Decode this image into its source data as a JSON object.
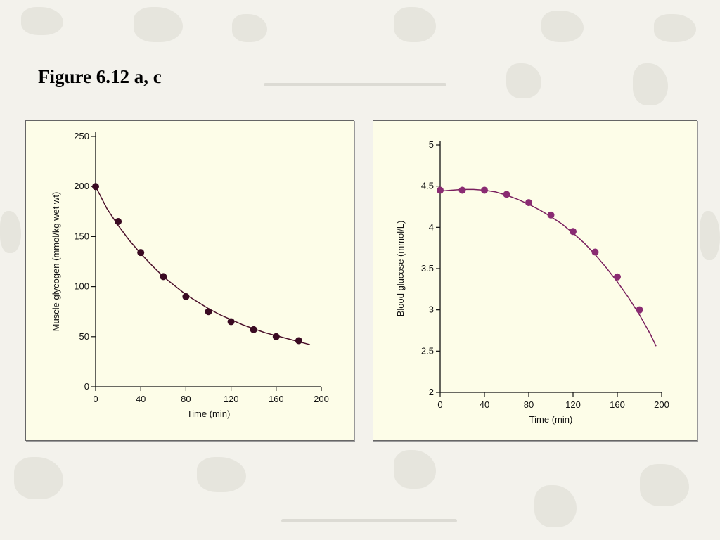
{
  "slide": {
    "title": "Figure 6.12 a, c"
  },
  "colors": {
    "background": "#f3f2ec",
    "panel": "#fdfde8",
    "curve_a": "#4a0f2a",
    "curve_c": "#7a1f5e",
    "points_a": "#3a0a22",
    "points_c": "#8a2b72"
  },
  "chart_data": [
    {
      "type": "scatter",
      "xlabel": "Time (min)",
      "ylabel": "Muscle glycogen (mmol/kg wet wt)",
      "xlim": [
        0,
        200
      ],
      "ylim": [
        0,
        250
      ],
      "xticks": [
        0,
        40,
        80,
        120,
        160,
        200
      ],
      "yticks": [
        0,
        50,
        100,
        150,
        200,
        250
      ],
      "grid": false,
      "points": {
        "x": [
          0,
          20,
          40,
          60,
          80,
          100,
          120,
          140,
          160,
          180
        ],
        "y": [
          200,
          165,
          134,
          110,
          90,
          75,
          65,
          57,
          50,
          46
        ]
      },
      "fit_curve": {
        "x": [
          0,
          10,
          20,
          30,
          40,
          50,
          60,
          70,
          80,
          90,
          100,
          110,
          120,
          130,
          140,
          150,
          160,
          170,
          180,
          190
        ],
        "y": [
          200,
          178,
          161,
          146,
          133,
          121,
          110,
          101,
          92,
          85,
          78,
          72,
          67,
          62,
          58,
          54,
          51,
          48,
          45,
          42
        ]
      }
    },
    {
      "type": "scatter",
      "xlabel": "Time (min)",
      "ylabel": "Blood glucose (mmol/L)",
      "xlim": [
        0,
        200
      ],
      "ylim": [
        2,
        5
      ],
      "xticks": [
        0,
        40,
        80,
        120,
        160,
        200
      ],
      "yticks": [
        2,
        2.5,
        3,
        3.5,
        4,
        4.5,
        5
      ],
      "grid": false,
      "points": {
        "x": [
          0,
          20,
          40,
          60,
          80,
          100,
          120,
          140,
          160,
          180
        ],
        "y": [
          4.45,
          4.45,
          4.45,
          4.4,
          4.3,
          4.15,
          3.95,
          3.7,
          3.4,
          3.0
        ]
      },
      "fit_curve": {
        "x": [
          0,
          10,
          20,
          30,
          40,
          50,
          60,
          70,
          80,
          90,
          100,
          110,
          120,
          130,
          140,
          150,
          160,
          170,
          180,
          190,
          195
        ],
        "y": [
          4.44,
          4.45,
          4.46,
          4.46,
          4.45,
          4.43,
          4.39,
          4.34,
          4.28,
          4.21,
          4.13,
          4.04,
          3.93,
          3.81,
          3.67,
          3.51,
          3.34,
          3.15,
          2.94,
          2.7,
          2.56
        ]
      }
    }
  ]
}
